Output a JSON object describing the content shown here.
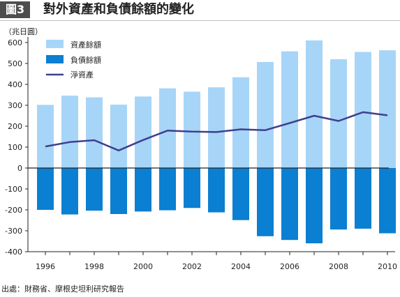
{
  "header": {
    "badge": "圖3",
    "title": "對外資產和負債餘額的變化"
  },
  "source": "出處：財務省、摩根史坦利研究報告",
  "colors": {
    "assets": "#a7d5f7",
    "liabilities": "#0b7fd1",
    "net": "#3f3f8f",
    "axis": "#222222"
  },
  "chart_data": {
    "type": "bar",
    "unit_label": "（兆日圓）",
    "x": [
      1996,
      1997,
      1998,
      1999,
      2000,
      2001,
      2002,
      2003,
      2004,
      2005,
      2006,
      2007,
      2008,
      2009,
      2010
    ],
    "x_tick_labels": [
      "1996",
      "1998",
      "2000",
      "2002",
      "2004",
      "2006",
      "2008",
      "2010"
    ],
    "x_tick_values": [
      1996,
      1998,
      2000,
      2002,
      2004,
      2006,
      2008,
      2010
    ],
    "ylim": [
      -400,
      600
    ],
    "y_ticks": [
      600,
      500,
      400,
      300,
      200,
      100,
      0,
      -100,
      -200,
      -300,
      -400
    ],
    "series": [
      {
        "name": "資產餘額",
        "kind": "bar",
        "values": [
          302,
          346,
          338,
          303,
          342,
          381,
          365,
          386,
          434,
          507,
          558,
          610,
          520,
          555,
          563
        ]
      },
      {
        "name": "負債餘額",
        "kind": "bar",
        "values": [
          -200,
          -222,
          -204,
          -220,
          -208,
          -202,
          -191,
          -212,
          -249,
          -326,
          -344,
          -360,
          -294,
          -290,
          -312
        ]
      },
      {
        "name": "淨資產",
        "kind": "line",
        "values": [
          103,
          124,
          133,
          84,
          134,
          179,
          174,
          172,
          185,
          181,
          215,
          250,
          225,
          267,
          252
        ]
      }
    ],
    "legend": "top-left",
    "grid": false
  }
}
